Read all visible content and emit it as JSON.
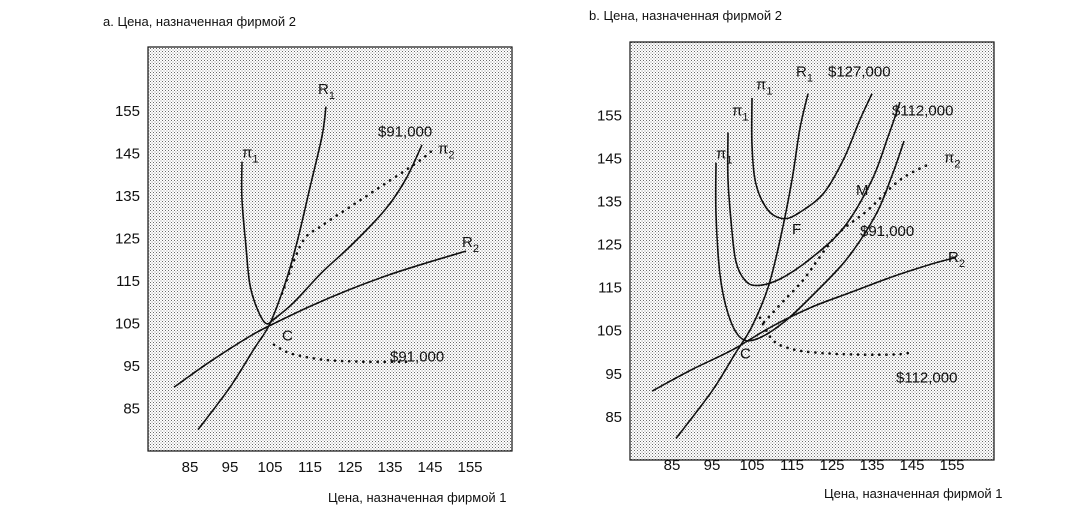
{
  "charts": [
    {
      "type": "line",
      "title": "a. Цена, назначенная фирмой 2",
      "xlabel": "Цена, назначенная фирмой 1",
      "x_ticks": [
        "85",
        "95",
        "105",
        "115",
        "125",
        "135",
        "145",
        "155"
      ],
      "y_ticks": [
        "85",
        "95",
        "105",
        "115",
        "125",
        "135",
        "145",
        "155"
      ],
      "xlim": [
        75,
        165
      ],
      "ylim": [
        75,
        170
      ],
      "point_labels": [
        {
          "text": "C",
          "x": 108,
          "y": 101
        }
      ],
      "curve_labels": [
        {
          "id": "pi1",
          "main": "π",
          "sub": "1",
          "x": 98,
          "y": 144
        },
        {
          "id": "R1",
          "main": "R",
          "sub": "1",
          "x": 117,
          "y": 159
        },
        {
          "id": "pi2",
          "main": "π",
          "sub": "2",
          "x": 147,
          "y": 145
        },
        {
          "id": "R2",
          "main": "R",
          "sub": "2",
          "x": 153,
          "y": 123
        },
        {
          "id": "iso-91-top",
          "main": "$91,000",
          "sub": "",
          "x": 132,
          "y": 149
        },
        {
          "id": "iso-91-bottom",
          "main": "$91,000",
          "sub": "",
          "x": 135,
          "y": 96
        }
      ],
      "series": [
        {
          "id": "R1",
          "style": "solid",
          "points": [
            [
              87,
              80
            ],
            [
              95,
              90
            ],
            [
              101,
              99
            ],
            [
              105,
              105
            ],
            [
              109,
              115
            ],
            [
              112,
              125
            ],
            [
              115,
              137
            ],
            [
              118,
              149
            ],
            [
              119,
              156
            ]
          ]
        },
        {
          "id": "R2",
          "style": "solid",
          "points": [
            [
              81,
              90
            ],
            [
              90,
              96
            ],
            [
              100,
              102
            ],
            [
              105,
              104.5
            ],
            [
              115,
              109
            ],
            [
              125,
              113
            ],
            [
              135,
              116.5
            ],
            [
              145,
              119.5
            ],
            [
              154,
              122
            ]
          ]
        },
        {
          "id": "pi1-isoprofit",
          "style": "solid",
          "points": [
            [
              98,
              143
            ],
            [
              98,
              134
            ],
            [
              99,
              123
            ],
            [
              100,
              114
            ],
            [
              102,
              108
            ],
            [
              104,
              105
            ],
            [
              106,
              106
            ],
            [
              111,
              110
            ],
            [
              118,
              117
            ],
            [
              126,
              124
            ],
            [
              134,
              132
            ],
            [
              139,
              139
            ],
            [
              143,
              147
            ]
          ]
        },
        {
          "id": "pi2-isoprofit",
          "style": "dotted",
          "points": [
            [
              108,
              112
            ],
            [
              113,
              124
            ],
            [
              118,
              128
            ],
            [
              126,
              133
            ],
            [
              134,
              138
            ],
            [
              142,
              143
            ],
            [
              146,
              146
            ]
          ]
        },
        {
          "id": "iso-91-bottom",
          "style": "dotted",
          "points": [
            [
              106,
              100
            ],
            [
              110,
              98
            ],
            [
              118,
              96.5
            ],
            [
              128,
              96
            ],
            [
              140,
              96
            ]
          ]
        }
      ]
    },
    {
      "type": "line",
      "title": "b. Цена, назначенная фирмой 2",
      "xlabel": "Цена, назначенная фирмой 1",
      "x_ticks": [
        "85",
        "95",
        "105",
        "115",
        "125",
        "135",
        "145",
        "155"
      ],
      "y_ticks": [
        "85",
        "95",
        "105",
        "115",
        "125",
        "135",
        "145",
        "155"
      ],
      "xlim": [
        75,
        165
      ],
      "ylim": [
        75,
        172
      ],
      "point_labels": [
        {
          "text": "C",
          "x": 102,
          "y": 98.5
        },
        {
          "text": "F",
          "x": 115,
          "y": 127.5
        },
        {
          "text": "M",
          "x": 131,
          "y": 136.5
        }
      ],
      "curve_labels": [
        {
          "id": "pi1-a",
          "main": "π",
          "sub": "1",
          "x": 96,
          "y": 145
        },
        {
          "id": "pi1-b",
          "main": "π",
          "sub": "1",
          "x": 100,
          "y": 155
        },
        {
          "id": "pi1-c",
          "main": "π",
          "sub": "1",
          "x": 106,
          "y": 161
        },
        {
          "id": "R1",
          "main": "R",
          "sub": "1",
          "x": 116,
          "y": 164
        },
        {
          "id": "pi2",
          "main": "π",
          "sub": "2",
          "x": 153,
          "y": 144
        },
        {
          "id": "R2",
          "main": "R",
          "sub": "2",
          "x": 154,
          "y": 121
        },
        {
          "id": "iso-127",
          "main": "$127,000",
          "sub": "",
          "x": 124,
          "y": 164
        },
        {
          "id": "iso-112-top",
          "main": "$112,000",
          "sub": "",
          "x": 140,
          "y": 155
        },
        {
          "id": "iso-91",
          "main": "$91,000",
          "sub": "",
          "x": 132,
          "y": 127
        },
        {
          "id": "iso-112-bottom",
          "main": "$112,000",
          "sub": "",
          "x": 141,
          "y": 93
        }
      ],
      "series": [
        {
          "id": "R1",
          "style": "solid",
          "points": [
            [
              86,
              80
            ],
            [
              95,
              91
            ],
            [
              101,
              100
            ],
            [
              105,
              106
            ],
            [
              109,
              115
            ],
            [
              112,
              126
            ],
            [
              115,
              140
            ],
            [
              117,
              152
            ],
            [
              119,
              160
            ]
          ]
        },
        {
          "id": "R2",
          "style": "solid",
          "points": [
            [
              80,
              91
            ],
            [
              90,
              96
            ],
            [
              100,
              100.5
            ],
            [
              110,
              106
            ],
            [
              120,
              110.5
            ],
            [
              130,
              114
            ],
            [
              140,
              117.5
            ],
            [
              150,
              120.5
            ],
            [
              156,
              122
            ]
          ]
        },
        {
          "id": "pi1-91",
          "style": "solid",
          "points": [
            [
              96,
              144
            ],
            [
              96,
              132
            ],
            [
              97,
              118
            ],
            [
              99,
              109
            ],
            [
              102,
              103.5
            ],
            [
              106,
              103
            ],
            [
              113,
              107
            ],
            [
              121,
              114
            ],
            [
              129,
              122
            ],
            [
              136,
              132
            ],
            [
              140,
              141
            ],
            [
              143,
              149
            ]
          ]
        },
        {
          "id": "pi1-112",
          "style": "solid",
          "points": [
            [
              99,
              151
            ],
            [
              99,
              140
            ],
            [
              100,
              128
            ],
            [
              101,
              121
            ],
            [
              103,
              117
            ],
            [
              106,
              115.5
            ],
            [
              112,
              117
            ],
            [
              120,
              122
            ],
            [
              128,
              129
            ],
            [
              135,
              140
            ],
            [
              139,
              150
            ],
            [
              142,
              158
            ]
          ]
        },
        {
          "id": "pi1-127",
          "style": "solid",
          "points": [
            [
              105,
              159
            ],
            [
              105,
              148
            ],
            [
              106,
              139
            ],
            [
              109,
              133
            ],
            [
              113,
              131
            ],
            [
              117,
              132.5
            ],
            [
              123,
              137
            ],
            [
              128,
              145
            ],
            [
              132,
              154
            ],
            [
              135,
              160
            ]
          ]
        },
        {
          "id": "pi2-isoprofit",
          "style": "dotted",
          "points": [
            [
              108,
              107
            ],
            [
              113,
              112
            ],
            [
              118,
              117
            ],
            [
              126,
              127
            ],
            [
              134,
              133
            ],
            [
              142,
              140
            ],
            [
              150,
              144
            ]
          ]
        },
        {
          "id": "iso-112-bottom",
          "style": "dotted",
          "points": [
            [
              107,
              108
            ],
            [
              110,
              103
            ],
            [
              114,
              101
            ],
            [
              120,
              100
            ],
            [
              130,
              99.5
            ],
            [
              141,
              99.5
            ],
            [
              145,
              100
            ]
          ]
        }
      ]
    }
  ]
}
